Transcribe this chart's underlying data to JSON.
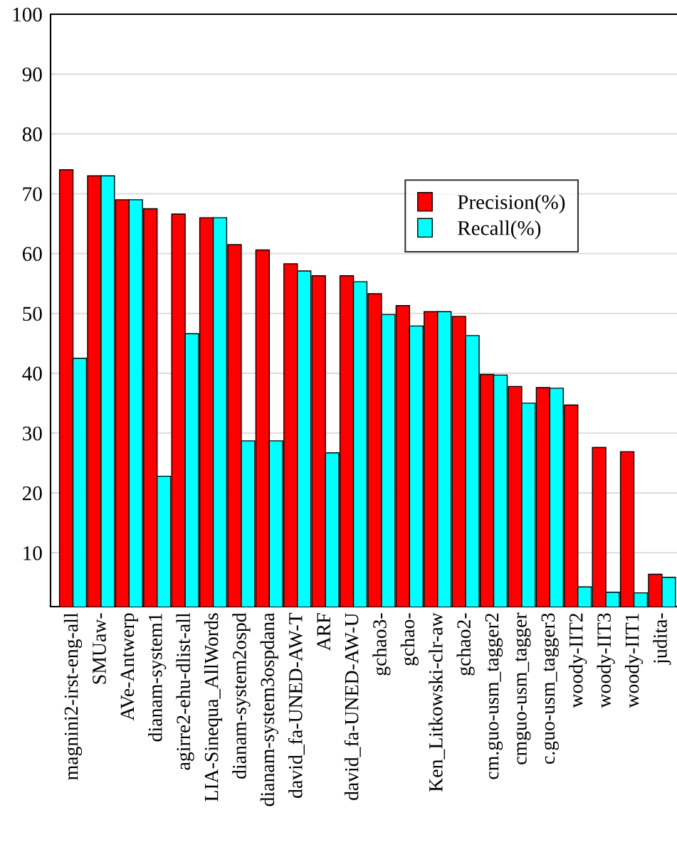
{
  "chart_data": {
    "type": "bar",
    "categories": [
      "magnini2-irst-eng-all",
      "SMUaw-",
      "AVe-Antwerp",
      "dianam-system1",
      "agirre2-ehu-dlist-all",
      "LIA-Sinequa_AllWords",
      "dianam-system2ospd",
      "dianam-system3ospdana",
      "david_fa-UNED-AW-T",
      "ARF",
      "david_fa-UNED-AW-U",
      "gchao3-",
      "gchao-",
      "Ken_Litkowski-clr-aw",
      "gchao2-",
      "cm.guo-usm_tagger2",
      "cmguo-usm_tagger",
      "c.guo-usm_tagger3",
      "woody-IIT2",
      "woody-IIT3",
      "woody-IIT1",
      "judita-"
    ],
    "series": [
      {
        "name": "Precision(%)",
        "color": "#ff0000",
        "values": [
          74,
          73,
          69,
          67.5,
          66.6,
          66,
          61.5,
          60.6,
          58.3,
          56.3,
          56.3,
          53.3,
          51.3,
          50.3,
          49.5,
          39.8,
          37.8,
          37.6,
          34.7,
          27.6,
          26.9,
          6.4
        ]
      },
      {
        "name": "Recall(%)",
        "color": "#00ffff",
        "values": [
          42.5,
          73,
          69,
          22.8,
          46.6,
          66,
          28.7,
          28.7,
          57.1,
          26.7,
          55.3,
          49.8,
          47.9,
          50.3,
          46.3,
          39.7,
          35.0,
          37.5,
          4.3,
          3.4,
          3.3,
          5.9
        ]
      }
    ],
    "ylim": [
      1,
      100
    ],
    "yticks": [
      10,
      20,
      30,
      40,
      50,
      60,
      70,
      80,
      90,
      100
    ],
    "grid": "y",
    "legend": "top right"
  }
}
